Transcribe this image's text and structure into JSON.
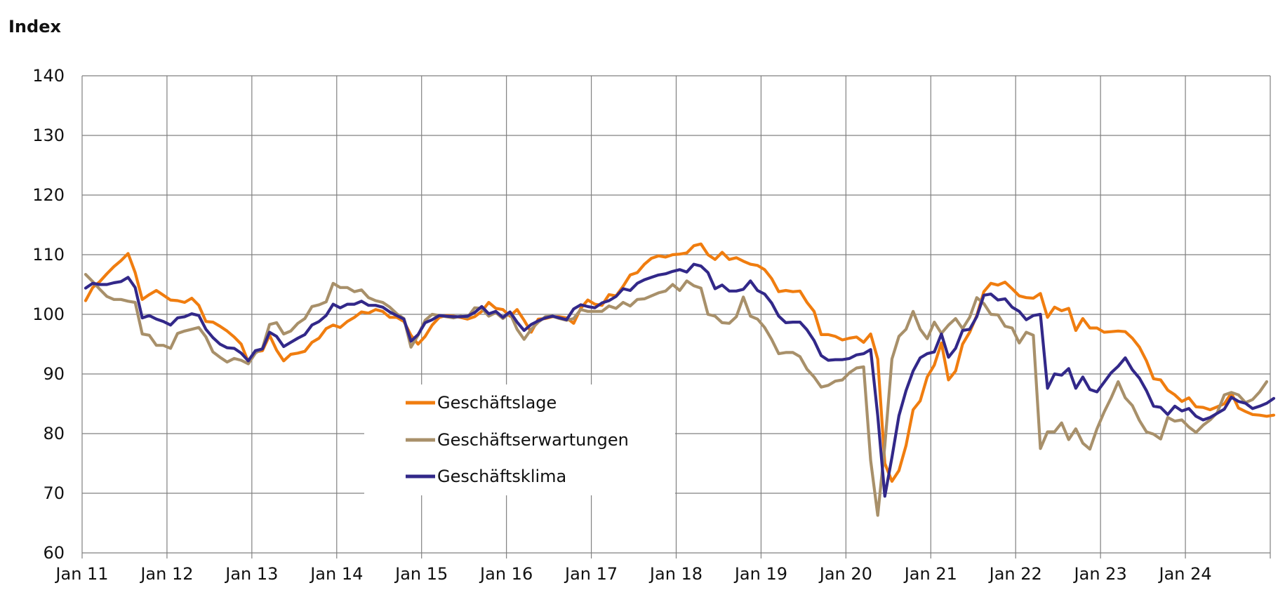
{
  "chart_data": {
    "type": "line",
    "ylabel": "Index",
    "ylim": [
      60,
      140
    ],
    "yticks": [
      60,
      70,
      80,
      90,
      100,
      110,
      120,
      130,
      140
    ],
    "x_start": "2011-01",
    "x_end": "2024-12",
    "xtick_labels": [
      "Jan 11",
      "Jan 12",
      "Jan 13",
      "Jan 14",
      "Jan 15",
      "Jan 16",
      "Jan 17",
      "Jan 18",
      "Jan 19",
      "Jan 20",
      "Jan 21",
      "Jan 22",
      "Jan 23",
      "Jan 24"
    ],
    "grid": true,
    "legend_position": "bottom-center",
    "series": [
      {
        "name": "Geschäftslage",
        "color": "#F07D0F",
        "values": [
          102.3,
          104.5,
          105.5,
          106.8,
          108,
          109,
          110.2,
          107,
          102.5,
          103.3,
          104,
          103.2,
          102.4,
          102.3,
          102,
          102.7,
          101.5,
          98.8,
          98.7,
          98,
          97.2,
          96.2,
          95,
          92,
          93.7,
          93.9,
          96.5,
          94,
          92.2,
          93.3,
          93.5,
          93.8,
          95.3,
          96,
          97.6,
          98.2,
          97.8,
          98.8,
          99.5,
          100.4,
          100.2,
          100.8,
          100.5,
          99.5,
          99.5,
          98.8,
          96.5,
          95,
          96.3,
          98.2,
          99.5,
          99.8,
          99.7,
          99.5,
          99.2,
          99.6,
          100.5,
          102,
          101,
          100.8,
          99.7,
          100.8,
          99,
          97,
          99.2,
          99.3,
          99.6,
          99.6,
          99.4,
          98.5,
          101,
          102.4,
          101.7,
          101.5,
          103.3,
          103.1,
          104.7,
          106.6,
          107,
          108.4,
          109.4,
          109.8,
          109.6,
          110,
          110.1,
          110.3,
          111.5,
          111.8,
          110,
          109.2,
          110.4,
          109.2,
          109.5,
          108.9,
          108.4,
          108.2,
          107.5,
          106,
          103.8,
          104,
          103.8,
          103.9,
          102,
          100.5,
          96.6,
          96.6,
          96.3,
          95.7,
          96,
          96.2,
          95.3,
          96.7,
          92.5,
          75,
          72,
          73.8,
          78,
          84,
          85.5,
          89.5,
          91.5,
          95.2,
          89,
          90.5,
          95,
          97,
          99.8,
          103.8,
          105.2,
          104.9,
          105.4,
          104.3,
          103.1,
          102.8,
          102.7,
          103.5,
          99.5,
          101.2,
          100.6,
          101,
          97.3,
          99.3,
          97.7,
          97.7,
          97,
          97.1,
          97.2,
          97.1,
          96,
          94.5,
          92.2,
          89.2,
          89,
          87.3,
          86.5,
          85.4,
          86,
          84.5,
          84.4,
          84,
          84.5,
          85,
          86.8,
          84.3,
          83.7,
          83.2,
          83.1,
          82.9,
          83.1
        ]
      },
      {
        "name": "Geschäftserwartungen",
        "color": "#A8906A",
        "values": [
          106.7,
          105.5,
          104.2,
          103,
          102.5,
          102.5,
          102.2,
          102,
          96.7,
          96.5,
          94.8,
          94.8,
          94.3,
          96.8,
          97.2,
          97.5,
          97.8,
          96.2,
          93.7,
          92.8,
          92,
          92.6,
          92.3,
          91.7,
          93.5,
          94.3,
          98.3,
          98.6,
          96.7,
          97.2,
          98.5,
          99.3,
          101.3,
          101.6,
          102.1,
          105.2,
          104.5,
          104.5,
          103.8,
          104.1,
          102.8,
          102.3,
          102,
          101.2,
          100.1,
          99.3,
          94.5,
          96.5,
          99,
          100,
          99.8,
          99.6,
          99.4,
          99.7,
          99.5,
          101.1,
          101,
          99.7,
          100.3,
          99.3,
          100.2,
          97.5,
          95.8,
          97.5,
          98.7,
          99.6,
          99.7,
          99.3,
          99,
          99.3,
          100.8,
          100.5,
          100.5,
          100.5,
          101.4,
          101,
          102,
          101.4,
          102.5,
          102.6,
          103.1,
          103.6,
          103.9,
          105,
          104,
          105.6,
          104.8,
          104.4,
          100,
          99.7,
          98.6,
          98.5,
          99.6,
          102.9,
          99.7,
          99.2,
          97.8,
          95.8,
          93.4,
          93.6,
          93.6,
          92.9,
          90.8,
          89.5,
          87.8,
          88.1,
          88.8,
          89,
          90.2,
          91,
          91.2,
          75.5,
          66.3,
          78,
          92.5,
          96.3,
          97.5,
          100.5,
          97.5,
          95.9,
          98.7,
          96.8,
          98.2,
          99.3,
          97.6,
          99.5,
          102.8,
          101.8,
          100,
          99.9,
          98,
          97.7,
          95.2,
          97,
          96.5,
          77.5,
          80.3,
          80.3,
          81.8,
          79,
          80.8,
          78.4,
          77.4,
          80.8,
          83.6,
          86,
          88.7,
          86,
          84.7,
          82.2,
          80.3,
          79.9,
          79.1,
          82.7,
          82.1,
          82.3,
          81.1,
          80.2,
          81.4,
          82.3,
          83.5,
          86.5,
          86.9,
          86.5,
          85.2,
          85.7,
          87,
          88.7
        ]
      },
      {
        "name": "Geschäftsklima",
        "color": "#322889",
        "values": [
          104.4,
          105.2,
          105,
          105,
          105.3,
          105.5,
          106.2,
          104.5,
          99.4,
          99.8,
          99.2,
          98.8,
          98.2,
          99.4,
          99.6,
          100.1,
          99.8,
          97.5,
          96.1,
          95,
          94.4,
          94.3,
          93.5,
          92.2,
          93.9,
          94.2,
          97,
          96.3,
          94.6,
          95.3,
          96,
          96.6,
          98.2,
          98.8,
          99.8,
          101.7,
          101.1,
          101.7,
          101.7,
          102.2,
          101.5,
          101.5,
          101.2,
          100.4,
          99.8,
          99.2,
          95.5,
          96.6,
          98.6,
          99.1,
          99.8,
          99.7,
          99.6,
          99.6,
          99.7,
          100.3,
          101.3,
          100.1,
          100.5,
          99.5,
          100.4,
          98.7,
          97.3,
          98.3,
          98.9,
          99.4,
          99.7,
          99.4,
          99.1,
          100.9,
          101.6,
          101.3,
          101.1,
          101.9,
          102.3,
          103,
          104.3,
          104,
          105.2,
          105.8,
          106.2,
          106.6,
          106.8,
          107.2,
          107.5,
          107.1,
          108.4,
          108.1,
          107,
          104.3,
          104.9,
          103.9,
          103.9,
          104.2,
          105.6,
          104,
          103.4,
          101.9,
          99.7,
          98.6,
          98.7,
          98.7,
          97.4,
          95.6,
          93.1,
          92.3,
          92.4,
          92.4,
          92.6,
          93.2,
          93.4,
          94.1,
          83,
          69.5,
          76,
          83,
          87.2,
          90.5,
          92.7,
          93.4,
          93.7,
          96.7,
          92.8,
          94.3,
          97.3,
          97.5,
          99.6,
          103.2,
          103.4,
          102.4,
          102.6,
          101.2,
          100.5,
          99.1,
          99.8,
          100,
          87.6,
          90,
          89.8,
          90.9,
          87.6,
          89.5,
          87.4,
          87,
          88.6,
          90.2,
          91.3,
          92.7,
          90.7,
          89.3,
          87.2,
          84.6,
          84.4,
          83.2,
          84.6,
          83.8,
          84.2,
          82.9,
          82.3,
          82.7,
          83.4,
          84.1,
          86.1,
          85.4,
          85.1,
          84.2,
          84.6,
          85.1,
          85.9
        ]
      }
    ]
  }
}
